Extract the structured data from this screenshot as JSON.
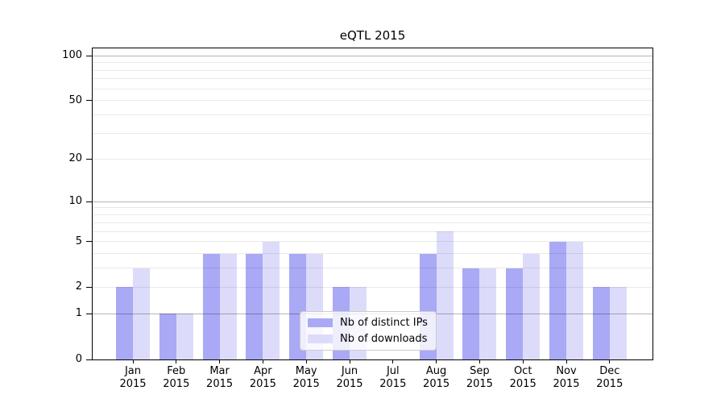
{
  "chart_data": {
    "type": "bar",
    "title": "eQTL 2015",
    "categories": [
      "Jan",
      "Feb",
      "Mar",
      "Apr",
      "May",
      "Jun",
      "Jul",
      "Aug",
      "Sep",
      "Oct",
      "Nov",
      "Dec"
    ],
    "year_label": "2015",
    "series": [
      {
        "name": "Nb of distinct IPs",
        "color": "#a9a9f5",
        "values": [
          2,
          1,
          4,
          4,
          4,
          2,
          0,
          4,
          3,
          3,
          5,
          2
        ]
      },
      {
        "name": "Nb of downloads",
        "color": "#dcdcfa",
        "values": [
          3,
          1,
          4,
          5,
          4,
          2,
          0,
          6,
          3,
          4,
          5,
          2
        ]
      }
    ],
    "xlabel": "",
    "ylabel": "",
    "yscale": "log1p",
    "ylim": [
      0,
      112
    ],
    "y_ticks": [
      0,
      1,
      2,
      5,
      10,
      20,
      50,
      100
    ],
    "y_major_gridlines": [
      1,
      10,
      100
    ],
    "y_minor_gridlines": [
      2,
      3,
      4,
      5,
      6,
      7,
      8,
      9,
      20,
      30,
      40,
      50,
      60,
      70,
      80,
      90
    ],
    "grid": "horizontal",
    "legend_position": "inside-bottom-center"
  },
  "colors": {
    "background": "#ffffff",
    "spine": "#000000",
    "bar_distinct_ips": "#a9a9f5",
    "bar_downloads": "#dcdcfa"
  }
}
